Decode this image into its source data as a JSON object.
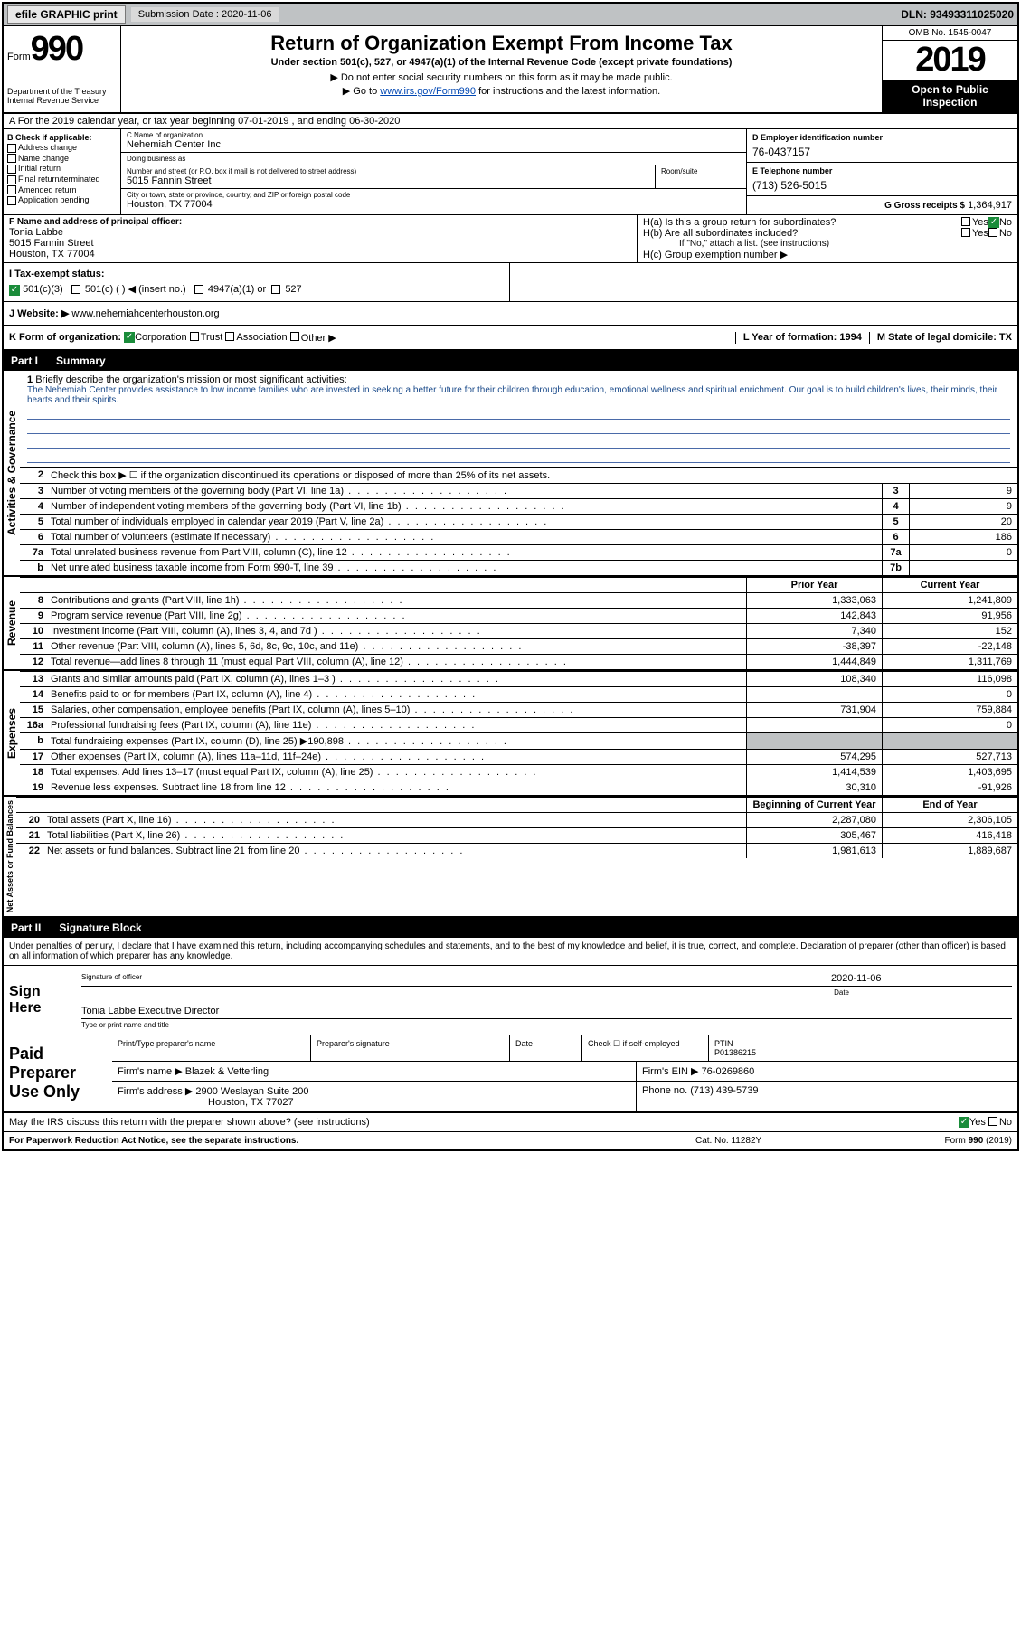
{
  "topbar": {
    "efile": "efile GRAPHIC print",
    "submission": "Submission Date : 2020-11-06",
    "dln": "DLN: 93493311025020"
  },
  "header": {
    "form_label": "Form",
    "form_num": "990",
    "dept": "Department of the Treasury\nInternal Revenue Service",
    "title": "Return of Organization Exempt From Income Tax",
    "sub1": "Under section 501(c), 527, or 4947(a)(1) of the Internal Revenue Code (except private foundations)",
    "sub2": "▶ Do not enter social security numbers on this form as it may be made public.",
    "sub3_pre": "▶ Go to ",
    "sub3_link": "www.irs.gov/Form990",
    "sub3_post": " for instructions and the latest information.",
    "omb": "OMB No. 1545-0047",
    "year": "2019",
    "open": "Open to Public Inspection"
  },
  "row_a": "A   For the 2019 calendar year, or tax year beginning 07-01-2019    , and ending 06-30-2020",
  "col_b": {
    "label": "B Check if applicable:",
    "opts": [
      "Address change",
      "Name change",
      "Initial return",
      "Final return/terminated",
      "Amended return",
      "Application pending"
    ]
  },
  "name": {
    "lbl_c": "C Name of organization",
    "org": "Nehemiah Center Inc",
    "dba_lbl": "Doing business as",
    "dba": "",
    "addr_lbl": "Number and street (or P.O. box if mail is not delivered to street address)",
    "addr": "5015 Fannin Street",
    "room_lbl": "Room/suite",
    "city_lbl": "City or town, state or province, country, and ZIP or foreign postal code",
    "city": "Houston, TX  77004"
  },
  "col_de": {
    "d_lbl": "D Employer identification number",
    "d_val": "76-0437157",
    "e_lbl": "E Telephone number",
    "e_val": "(713) 526-5015",
    "g_lbl": "G Gross receipts $",
    "g_val": "1,364,917"
  },
  "f": {
    "lbl": "F  Name and address of principal officer:",
    "name": "Tonia Labbe",
    "addr1": "5015 Fannin Street",
    "addr2": "Houston, TX  77004"
  },
  "h": {
    "ha": "H(a)  Is this a group return for subordinates?",
    "hb": "H(b)  Are all subordinates included?",
    "hb_note": "If \"No,\" attach a list. (see instructions)",
    "hc": "H(c)  Group exemption number ▶",
    "yes": "Yes",
    "no": "No"
  },
  "i": {
    "lbl": "I    Tax-exempt status:",
    "o1": "501(c)(3)",
    "o2": "501(c) (   ) ◀ (insert no.)",
    "o3": "4947(a)(1) or",
    "o4": "527"
  },
  "j": {
    "lbl": "J   Website: ▶",
    "val": "www.nehemiahcenterhouston.org"
  },
  "k": {
    "lbl": "K Form of organization:",
    "o1": "Corporation",
    "o2": "Trust",
    "o3": "Association",
    "o4": "Other ▶",
    "l": "L Year of formation: 1994",
    "m": "M State of legal domicile: TX"
  },
  "part1": {
    "label": "Part I",
    "title": "Summary"
  },
  "mission": {
    "num": "1",
    "lbl": "Briefly describe the organization's mission or most significant activities:",
    "text": "The Nehemiah Center provides assistance to low income families who are invested in seeking a better future for their children through education, emotional wellness and spiritual enrichment. Our goal is to build children's lives, their minds, their hearts and their spirits."
  },
  "gov_label": "Activities & Governance",
  "gov_rows": [
    {
      "n": "2",
      "d": "Check this box ▶ ☐ if the organization discontinued its operations or disposed of more than 25% of its net assets."
    },
    {
      "n": "3",
      "d": "Number of voting members of the governing body (Part VI, line 1a)",
      "b": "3",
      "v": "9"
    },
    {
      "n": "4",
      "d": "Number of independent voting members of the governing body (Part VI, line 1b)",
      "b": "4",
      "v": "9"
    },
    {
      "n": "5",
      "d": "Total number of individuals employed in calendar year 2019 (Part V, line 2a)",
      "b": "5",
      "v": "20"
    },
    {
      "n": "6",
      "d": "Total number of volunteers (estimate if necessary)",
      "b": "6",
      "v": "186"
    },
    {
      "n": "7a",
      "d": "Total unrelated business revenue from Part VIII, column (C), line 12",
      "b": "7a",
      "v": "0"
    },
    {
      "n": "b",
      "d": "Net unrelated business taxable income from Form 990-T, line 39",
      "b": "7b",
      "v": ""
    }
  ],
  "col_headers": {
    "prior": "Prior Year",
    "current": "Current Year"
  },
  "rev_label": "Revenue",
  "rev_rows": [
    {
      "n": "8",
      "d": "Contributions and grants (Part VIII, line 1h)",
      "v1": "1,333,063",
      "v2": "1,241,809"
    },
    {
      "n": "9",
      "d": "Program service revenue (Part VIII, line 2g)",
      "v1": "142,843",
      "v2": "91,956"
    },
    {
      "n": "10",
      "d": "Investment income (Part VIII, column (A), lines 3, 4, and 7d )",
      "v1": "7,340",
      "v2": "152"
    },
    {
      "n": "11",
      "d": "Other revenue (Part VIII, column (A), lines 5, 6d, 8c, 9c, 10c, and 11e)",
      "v1": "-38,397",
      "v2": "-22,148"
    },
    {
      "n": "12",
      "d": "Total revenue—add lines 8 through 11 (must equal Part VIII, column (A), line 12)",
      "v1": "1,444,849",
      "v2": "1,311,769"
    }
  ],
  "exp_label": "Expenses",
  "exp_rows": [
    {
      "n": "13",
      "d": "Grants and similar amounts paid (Part IX, column (A), lines 1–3 )",
      "v1": "108,340",
      "v2": "116,098"
    },
    {
      "n": "14",
      "d": "Benefits paid to or for members (Part IX, column (A), line 4)",
      "v1": "",
      "v2": "0"
    },
    {
      "n": "15",
      "d": "Salaries, other compensation, employee benefits (Part IX, column (A), lines 5–10)",
      "v1": "731,904",
      "v2": "759,884"
    },
    {
      "n": "16a",
      "d": "Professional fundraising fees (Part IX, column (A), line 11e)",
      "v1": "",
      "v2": "0"
    },
    {
      "n": "b",
      "d": "Total fundraising expenses (Part IX, column (D), line 25) ▶190,898",
      "v1": "",
      "v2": "",
      "shaded": true
    },
    {
      "n": "17",
      "d": "Other expenses (Part IX, column (A), lines 11a–11d, 11f–24e)",
      "v1": "574,295",
      "v2": "527,713"
    },
    {
      "n": "18",
      "d": "Total expenses. Add lines 13–17 (must equal Part IX, column (A), line 25)",
      "v1": "1,414,539",
      "v2": "1,403,695"
    },
    {
      "n": "19",
      "d": "Revenue less expenses. Subtract line 18 from line 12",
      "v1": "30,310",
      "v2": "-91,926"
    }
  ],
  "na_label": "Net Assets or\nFund Balances",
  "na_headers": {
    "begin": "Beginning of Current Year",
    "end": "End of Year"
  },
  "na_rows": [
    {
      "n": "20",
      "d": "Total assets (Part X, line 16)",
      "v1": "2,287,080",
      "v2": "2,306,105"
    },
    {
      "n": "21",
      "d": "Total liabilities (Part X, line 26)",
      "v1": "305,467",
      "v2": "416,418"
    },
    {
      "n": "22",
      "d": "Net assets or fund balances. Subtract line 21 from line 20",
      "v1": "1,981,613",
      "v2": "1,889,687"
    }
  ],
  "part2": {
    "label": "Part II",
    "title": "Signature Block"
  },
  "penalties": "Under penalties of perjury, I declare that I have examined this return, including accompanying schedules and statements, and to the best of my knowledge and belief, it is true, correct, and complete. Declaration of preparer (other than officer) is based on all information of which preparer has any knowledge.",
  "sign": {
    "here": "Sign Here",
    "sig_lbl": "Signature of officer",
    "date_lbl": "Date",
    "date": "2020-11-06",
    "name": "Tonia Labbe  Executive Director",
    "name_lbl": "Type or print name and title"
  },
  "prep": {
    "label": "Paid Preparer Use Only",
    "print_lbl": "Print/Type preparer's name",
    "sig_lbl": "Preparer's signature",
    "date_lbl": "Date",
    "check_lbl": "Check ☐ if self-employed",
    "ptin_lbl": "PTIN",
    "ptin": "P01386215",
    "firm_name_lbl": "Firm's name     ▶",
    "firm_name": "Blazek & Vetterling",
    "firm_ein_lbl": "Firm's EIN ▶",
    "firm_ein": "76-0269860",
    "firm_addr_lbl": "Firm's address ▶",
    "firm_addr1": "2900 Weslayan Suite 200",
    "firm_addr2": "Houston, TX  77027",
    "phone_lbl": "Phone no.",
    "phone": "(713) 439-5739"
  },
  "ask": {
    "q": "May the IRS discuss this return with the preparer shown above? (see instructions)",
    "yes": "Yes",
    "no": "No"
  },
  "footer": {
    "l": "For Paperwork Reduction Act Notice, see the separate instructions.",
    "c": "Cat. No. 11282Y",
    "r": "Form 990 (2019)"
  }
}
